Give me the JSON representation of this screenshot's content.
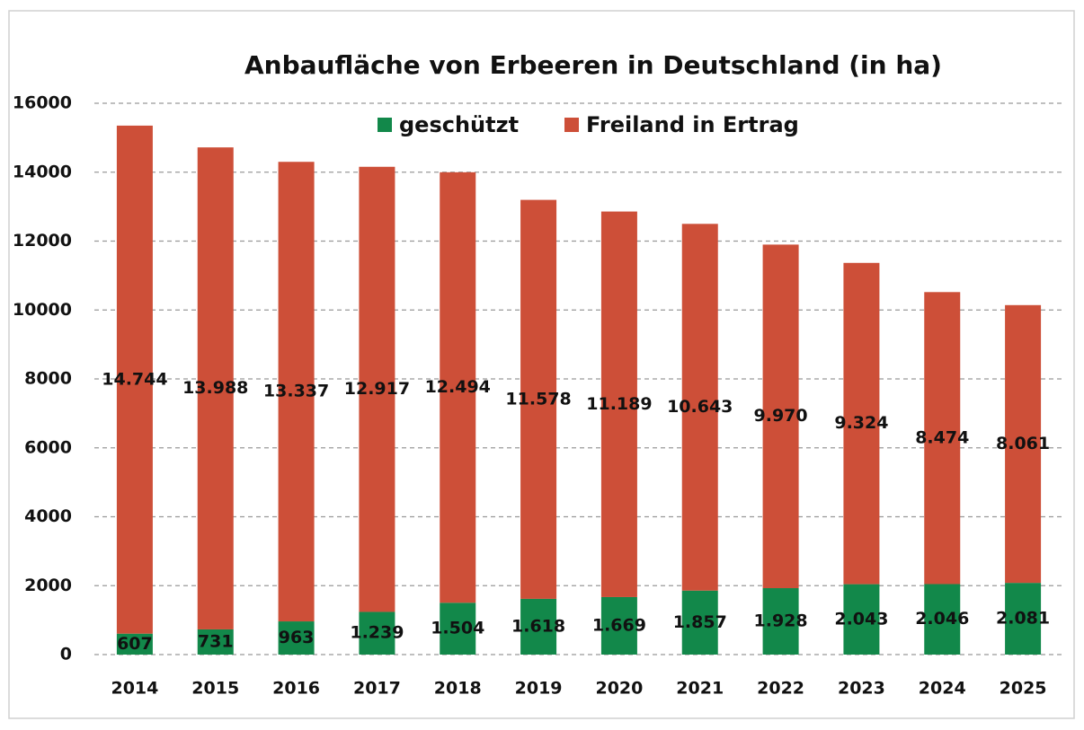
{
  "chart_data": {
    "type": "stacked_bar",
    "title": "Anbaufläche von Erbeeren in Deutschland  (in ha)",
    "categories": [
      "2014",
      "2015",
      "2016",
      "2017",
      "2018",
      "2019",
      "2020",
      "2021",
      "2022",
      "2023",
      "2024",
      "2025"
    ],
    "series": [
      {
        "name": "geschützt",
        "color": "#12884a",
        "values": [
          607,
          731,
          963,
          1239,
          1504,
          1618,
          1669,
          1857,
          1928,
          2043,
          2046,
          2081
        ],
        "value_labels": [
          "607",
          "731",
          "963",
          "1.239",
          "1.504",
          "1.618",
          "1.669",
          "1.857",
          "1.928",
          "2.043",
          "2.046",
          "2.081"
        ]
      },
      {
        "name": "Freiland in Ertrag",
        "color": "#cd4f38",
        "values": [
          14744,
          13988,
          13337,
          12917,
          12494,
          11578,
          11189,
          10643,
          9970,
          9324,
          8474,
          8061
        ],
        "value_labels": [
          "14.744",
          "13.988",
          "13.337",
          "12.917",
          "12.494",
          "11.578",
          "11.189",
          "10.643",
          "9.970",
          "9.324",
          "8.474",
          "8.061"
        ]
      }
    ],
    "ylim": [
      0,
      16000
    ],
    "yticks": [
      0,
      2000,
      4000,
      6000,
      8000,
      10000,
      12000,
      14000,
      16000
    ],
    "grid": true,
    "legend": "top"
  }
}
